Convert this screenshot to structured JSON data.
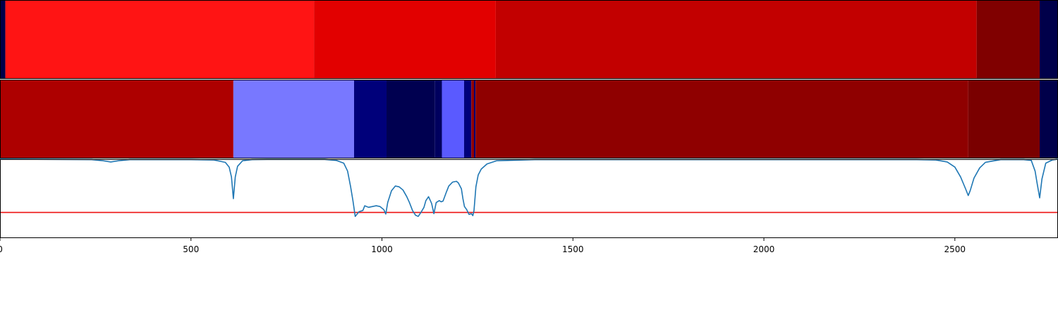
{
  "chart_data": [
    {
      "type": "heatmap",
      "panel": "top-band",
      "xlim": [
        0,
        2770
      ],
      "segments": [
        {
          "x0": 0,
          "x1": 14,
          "color": "#00004a"
        },
        {
          "x0": 14,
          "x1": 822,
          "color": "#ff1414"
        },
        {
          "x0": 822,
          "x1": 1298,
          "color": "#e20000"
        },
        {
          "x0": 1298,
          "x1": 2557,
          "color": "#c20000"
        },
        {
          "x0": 2557,
          "x1": 2722,
          "color": "#800000"
        },
        {
          "x0": 2722,
          "x1": 2770,
          "color": "#00004a"
        }
      ]
    },
    {
      "type": "heatmap",
      "panel": "middle-band",
      "xlim": [
        0,
        2770
      ],
      "segments": [
        {
          "x0": 0,
          "x1": 611,
          "color": "#ad0000"
        },
        {
          "x0": 611,
          "x1": 927,
          "color": "#7878ff"
        },
        {
          "x0": 927,
          "x1": 1012,
          "color": "#00007a"
        },
        {
          "x0": 1012,
          "x1": 1138,
          "color": "#000050"
        },
        {
          "x0": 1138,
          "x1": 1157,
          "color": "#00005e"
        },
        {
          "x0": 1157,
          "x1": 1215,
          "color": "#5a5aff"
        },
        {
          "x0": 1215,
          "x1": 1234,
          "color": "#00007a"
        },
        {
          "x0": 1234,
          "x1": 1241,
          "color": "#8f0000"
        },
        {
          "x0": 1241,
          "x1": 1245,
          "color": "#000070"
        },
        {
          "x0": 1245,
          "x1": 2535,
          "color": "#8f0000"
        },
        {
          "x0": 2535,
          "x1": 2722,
          "color": "#7a0000"
        },
        {
          "x0": 2722,
          "x1": 2770,
          "color": "#00004a"
        }
      ]
    },
    {
      "type": "line",
      "panel": "bottom-line",
      "xlim": [
        0,
        2770
      ],
      "ylim": [
        -1.0,
        1.0
      ],
      "xticks": [
        0,
        500,
        1000,
        1500,
        2000,
        2500
      ],
      "threshold": {
        "y": -0.35,
        "color": "#ee1111"
      },
      "series": [
        {
          "color": "#1f77b4",
          "x": [
            0,
            240,
            270,
            290,
            310,
            340,
            500,
            560,
            590,
            600,
            606,
            611,
            616,
            622,
            635,
            660,
            700,
            850,
            880,
            900,
            910,
            918,
            924,
            930,
            940,
            950,
            955,
            965,
            975,
            985,
            995,
            1005,
            1010,
            1015,
            1025,
            1035,
            1045,
            1055,
            1065,
            1072,
            1080,
            1088,
            1095,
            1102,
            1110,
            1115,
            1122,
            1130,
            1136,
            1142,
            1150,
            1155,
            1160,
            1168,
            1175,
            1185,
            1195,
            1200,
            1208,
            1212,
            1216,
            1222,
            1228,
            1234,
            1238,
            1241,
            1246,
            1252,
            1260,
            1275,
            1300,
            1400,
            2400,
            2450,
            2480,
            2500,
            2515,
            2528,
            2535,
            2540,
            2550,
            2565,
            2580,
            2620,
            2680,
            2700,
            2710,
            2716,
            2722,
            2728,
            2738,
            2755,
            2770
          ],
          "y": [
            1.0,
            0.99,
            0.96,
            0.93,
            0.96,
            0.99,
            0.99,
            0.98,
            0.92,
            0.8,
            0.55,
            0.0,
            0.55,
            0.82,
            0.96,
            0.99,
            0.995,
            0.995,
            0.97,
            0.9,
            0.7,
            0.3,
            -0.05,
            -0.45,
            -0.33,
            -0.3,
            -0.18,
            -0.22,
            -0.2,
            -0.18,
            -0.2,
            -0.28,
            -0.39,
            -0.1,
            0.2,
            0.32,
            0.3,
            0.22,
            0.05,
            -0.1,
            -0.3,
            -0.42,
            -0.45,
            -0.35,
            -0.22,
            -0.05,
            0.05,
            -0.12,
            -0.38,
            -0.1,
            -0.05,
            -0.08,
            -0.06,
            0.15,
            0.32,
            0.42,
            0.44,
            0.4,
            0.25,
            0.0,
            -0.2,
            -0.28,
            -0.4,
            -0.38,
            -0.43,
            -0.3,
            0.3,
            0.6,
            0.75,
            0.88,
            0.96,
            0.99,
            0.99,
            0.98,
            0.93,
            0.8,
            0.55,
            0.25,
            0.08,
            0.2,
            0.52,
            0.78,
            0.92,
            0.99,
            0.99,
            0.97,
            0.7,
            0.35,
            0.02,
            0.5,
            0.9,
            0.98,
            1.0
          ]
        }
      ]
    }
  ]
}
